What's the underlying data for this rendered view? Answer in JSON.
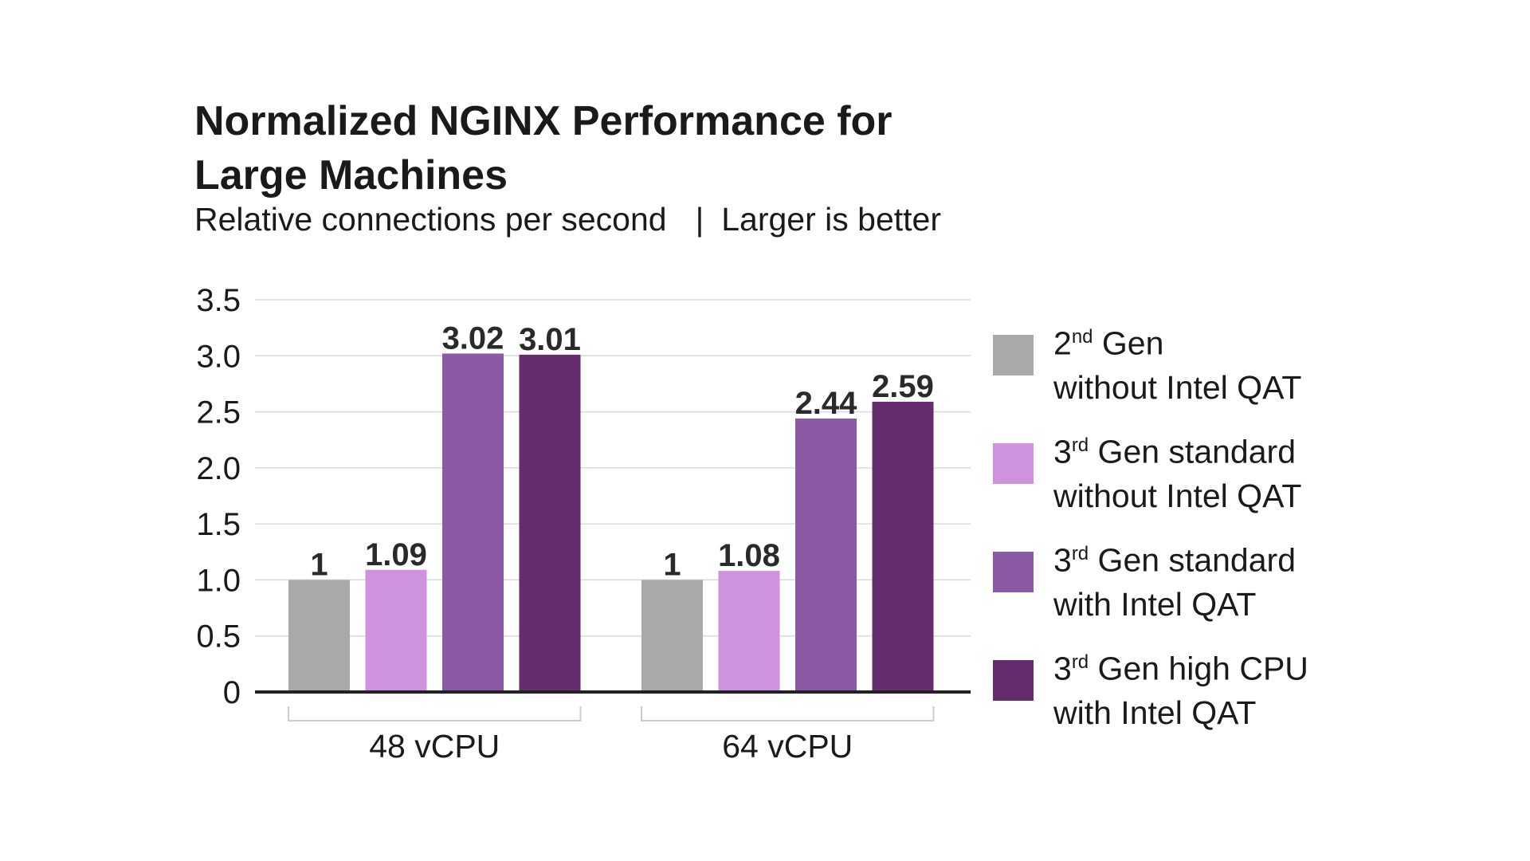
{
  "chart_data": {
    "type": "bar",
    "title": "Normalized NGINX Performance for Large Machines",
    "subtitle": "Relative connections per second",
    "subtitle_note": "Larger is better",
    "categories": [
      "48 vCPU",
      "64 vCPU"
    ],
    "series": [
      {
        "name": "2nd Gen without Intel QAT",
        "legend_parts": [
          "2",
          "nd",
          " Gen",
          "without Intel QAT"
        ],
        "color": "#a9a9a9",
        "values": [
          1,
          1
        ],
        "labels": [
          "1",
          "1"
        ]
      },
      {
        "name": "3rd Gen standard without Intel QAT",
        "legend_parts": [
          "3",
          "rd",
          " Gen standard",
          "without Intel QAT"
        ],
        "color": "#ce93dc",
        "values": [
          1.09,
          1.08
        ],
        "labels": [
          "1.09",
          "1.08"
        ]
      },
      {
        "name": "3rd Gen standard with Intel QAT",
        "legend_parts": [
          "3",
          "rd",
          " Gen standard",
          "with Intel QAT"
        ],
        "color": "#8c5aa5",
        "values": [
          3.02,
          2.44
        ],
        "labels": [
          "3.02",
          "2.44"
        ]
      },
      {
        "name": "3rd Gen high CPU with Intel QAT",
        "legend_parts": [
          "3",
          "rd",
          " Gen high CPU",
          "with Intel QAT"
        ],
        "color": "#662d6e",
        "values": [
          3.01,
          2.59
        ],
        "labels": [
          "3.01",
          "2.59"
        ]
      }
    ],
    "yticks": [
      "0",
      "0.5",
      "1.0",
      "1.5",
      "2.0",
      "2.5",
      "3.0",
      "3.5"
    ],
    "ylim": [
      0,
      3.5
    ],
    "grid": true,
    "legend_position": "right"
  }
}
